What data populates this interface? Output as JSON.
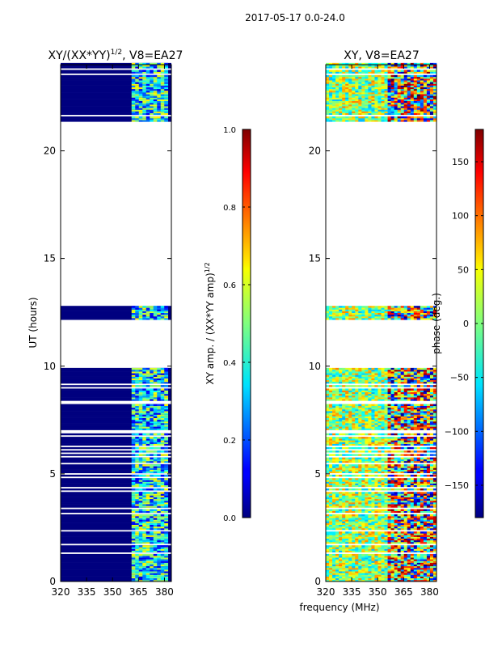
{
  "chart_data": {
    "type": "heatmap",
    "suptitle": "2017-05-17 0.0-24.0",
    "xlabel_shared": "frequency (MHz)",
    "panels": [
      {
        "id": "amp",
        "title_prefix": "XY/(XX*YY)",
        "title_sup": "1/2",
        "title_suffix": ", V8=EA27",
        "ylabel": "UT (hours)",
        "xlim": [
          320,
          384
        ],
        "ylim": [
          0,
          24
        ],
        "xticks": [
          320,
          335,
          350,
          365,
          380
        ],
        "yticks": [
          0,
          5,
          10,
          15,
          20
        ],
        "colorbar": {
          "label_prefix": "XY amp. / (XX*YY amp)",
          "label_sup": "1/2",
          "range": [
            0.0,
            1.0
          ],
          "ticks": [
            "0.0",
            "0.2",
            "0.4",
            "0.6",
            "0.8",
            "1.0"
          ],
          "tick_values": [
            0.0,
            0.2,
            0.4,
            0.6,
            0.8,
            1.0
          ]
        },
        "data_time_ranges_hours": [
          [
            0,
            9.9
          ],
          [
            12.1,
            12.8
          ],
          [
            21.3,
            24
          ]
        ],
        "signal_freq_range_mhz": [
          361,
          382
        ]
      },
      {
        "id": "phase",
        "title": "XY, V8=EA27",
        "xlim": [
          320,
          384
        ],
        "ylim": [
          0,
          24
        ],
        "xticks": [
          320,
          335,
          350,
          365,
          380
        ],
        "yticks": [
          0,
          5,
          10,
          15,
          20
        ],
        "colorbar": {
          "label": "phase (deg.)",
          "range": [
            -180,
            180
          ],
          "ticks": [
            "−150",
            "−100",
            "−50",
            "0",
            "50",
            "100",
            "150"
          ],
          "tick_values": [
            -150,
            -100,
            -50,
            0,
            50,
            100,
            150
          ]
        },
        "data_time_ranges_hours": [
          [
            0,
            9.9
          ],
          [
            12.1,
            12.8
          ],
          [
            21.3,
            24
          ]
        ]
      }
    ]
  }
}
